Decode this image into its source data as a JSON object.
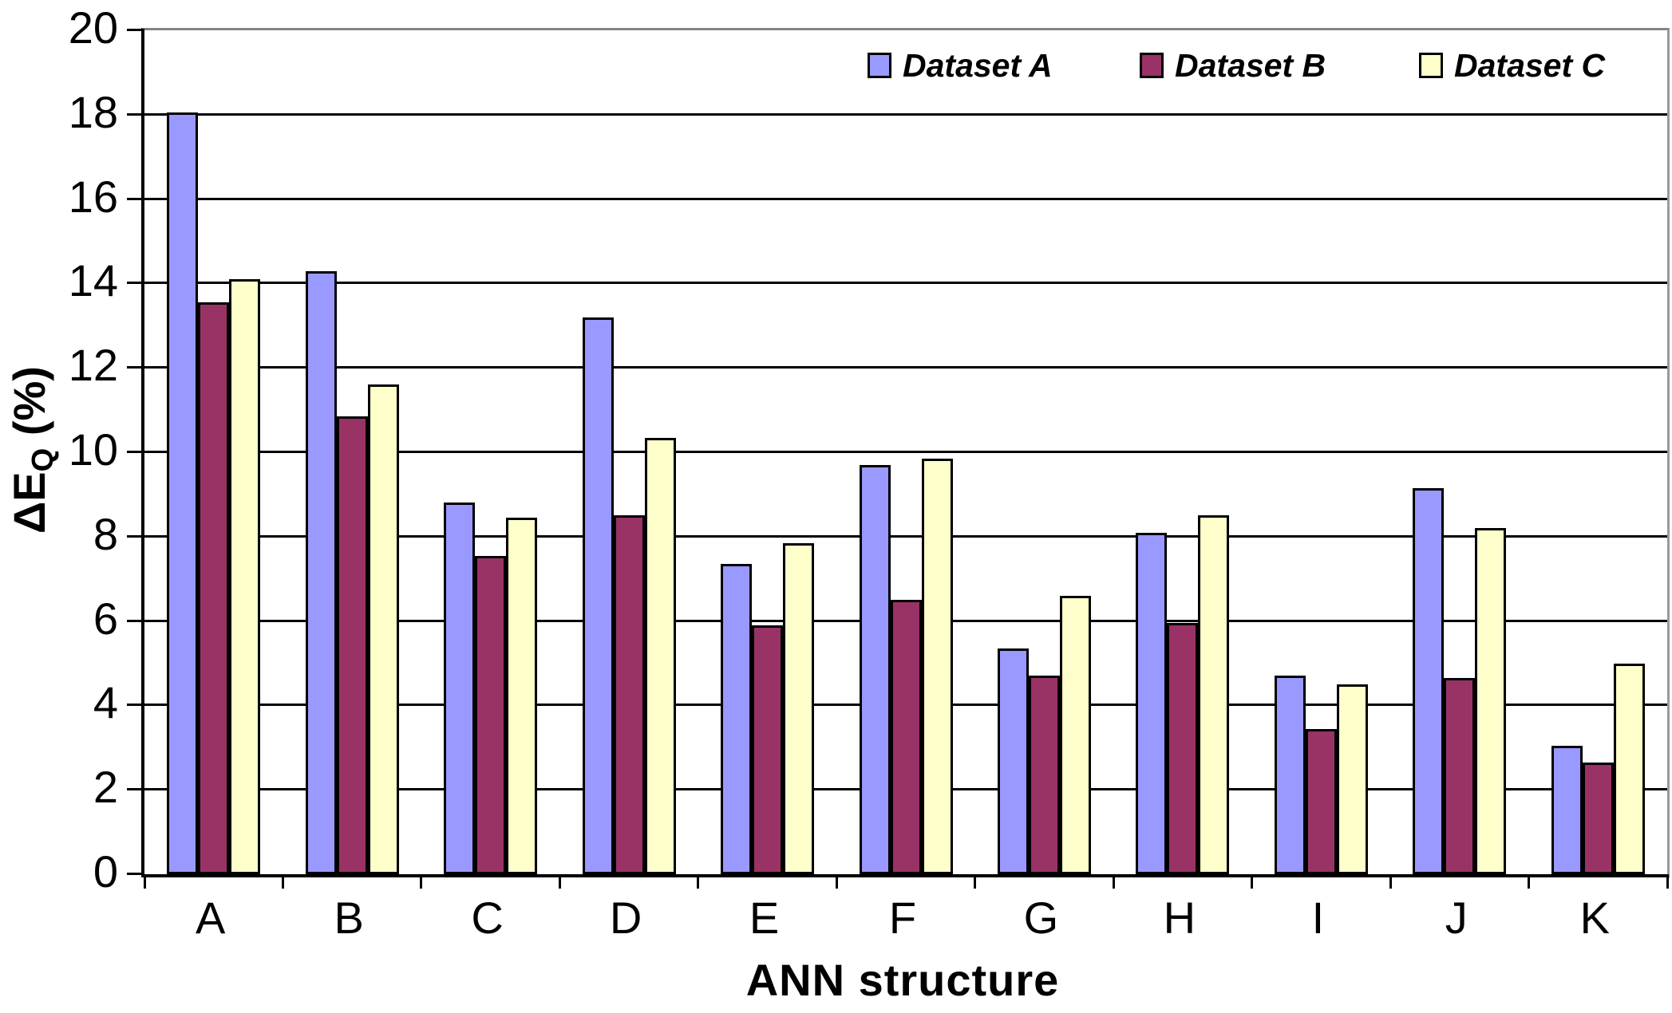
{
  "chart_data": {
    "type": "bar",
    "title": "",
    "xlabel": "ANN structure",
    "ylabel": "ΔE_Q (%)",
    "ylabel_parts": {
      "prefix": "ΔE",
      "subscript": "Q",
      "suffix": " (%)"
    },
    "categories": [
      "A",
      "B",
      "C",
      "D",
      "E",
      "F",
      "G",
      "H",
      "I",
      "J",
      "K"
    ],
    "series": [
      {
        "name": "Dataset A",
        "color": "#9999FF",
        "values": [
          18.05,
          14.3,
          8.8,
          13.2,
          7.35,
          9.7,
          5.35,
          8.1,
          4.7,
          9.15,
          3.05
        ]
      },
      {
        "name": "Dataset B",
        "color": "#993366",
        "values": [
          13.55,
          10.85,
          7.55,
          8.5,
          5.9,
          6.5,
          4.7,
          5.95,
          3.45,
          4.65,
          2.65
        ]
      },
      {
        "name": "Dataset C",
        "color": "#FFFFCC",
        "values": [
          14.1,
          11.6,
          8.45,
          10.35,
          7.85,
          9.85,
          6.6,
          8.5,
          4.5,
          8.2,
          5.0
        ]
      }
    ],
    "ylim": [
      0,
      20
    ],
    "y_ticks": [
      0,
      2,
      4,
      6,
      8,
      10,
      12,
      14,
      16,
      18,
      20
    ],
    "grid": "horizontal-black",
    "bar_border_color": "#000000",
    "axis_color": "#000000",
    "background": "#FFFFFF",
    "legend_position": "top-inside",
    "legend": [
      "Dataset A",
      "Dataset B",
      "Dataset C"
    ]
  }
}
